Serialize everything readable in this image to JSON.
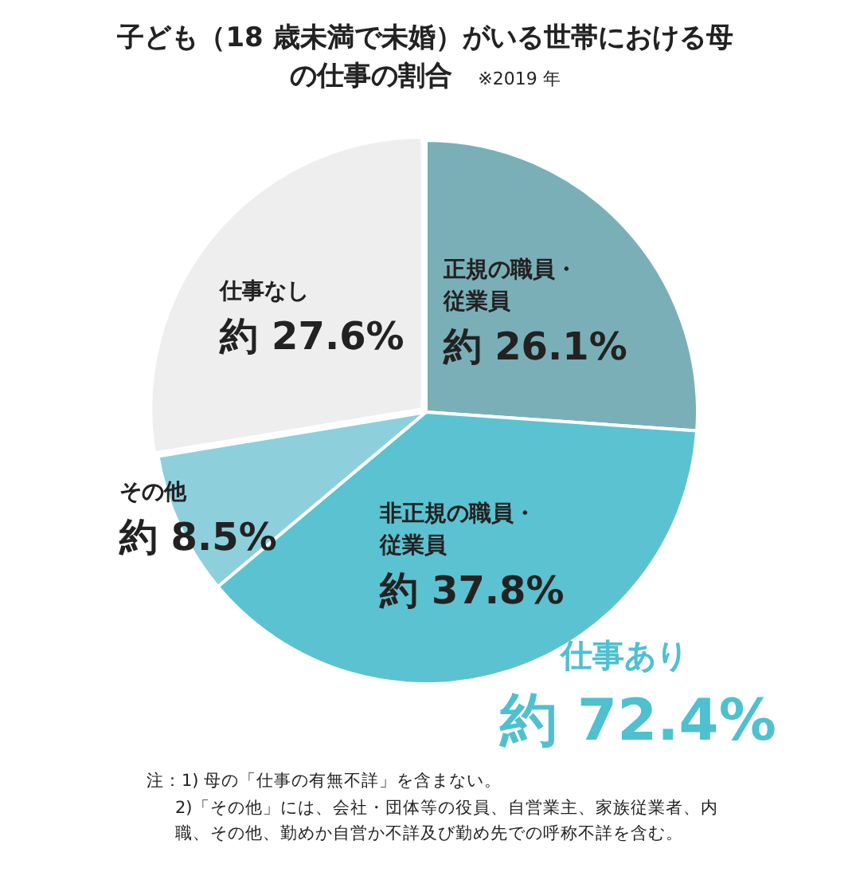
{
  "chart_data": {
    "type": "pie",
    "title": "子ども（18 歳未満で未婚）がいる世帯における母の仕事の割合",
    "subtitle": "※2019 年",
    "categories": [
      "正規の職員・従業員",
      "非正規の職員・従業員",
      "その他",
      "仕事なし"
    ],
    "values": [
      26.1,
      37.8,
      8.5,
      27.6
    ],
    "colors": [
      "#7aafb8",
      "#5bc2d1",
      "#8dd0dc",
      "#eeeeee"
    ],
    "value_labels": [
      "約 26.1%",
      "約 37.8%",
      "約 8.5%",
      "約 27.6%"
    ],
    "annotations": [
      "仕事あり",
      "約 72.4%",
      "注：1) 母の「仕事の有無不詳」を含まない。",
      "2)「その他」には、会社・団体等の役員、自営業主、家族従業者、内職、その他、勤めか自営か不詳及び勤め先での呼称不詳を含む。"
    ],
    "legend": false
  }
}
